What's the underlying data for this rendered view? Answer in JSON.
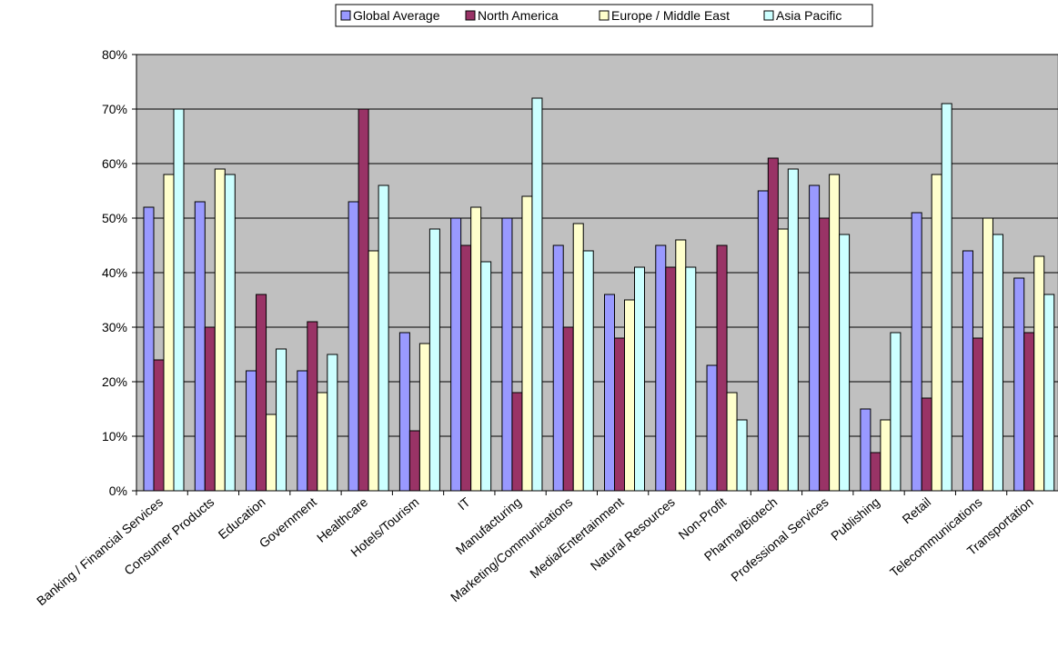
{
  "chart_data": {
    "type": "bar",
    "title": "",
    "xlabel": "",
    "ylabel": "",
    "ylim": [
      0,
      80
    ],
    "ytick_values": [
      0,
      10,
      20,
      30,
      40,
      50,
      60,
      70,
      80
    ],
    "ytick_labels": [
      "0%",
      "10%",
      "20%",
      "30%",
      "40%",
      "50%",
      "60%",
      "70%",
      "80%"
    ],
    "grid": true,
    "plot_background": "#c0c0c0",
    "legend_position": "top-center",
    "categories": [
      "Banking / Financial Services",
      "Consumer Products",
      "Education",
      "Government",
      "Healthcare",
      "Hotels/Tourism",
      "IT",
      "Manufacturing",
      "Marketing/Communications",
      "Media/Entertainment",
      "Natural Resources",
      "Non-Profit",
      "Pharma/Biotech",
      "Professional Services",
      "Publishing",
      "Retail",
      "Telecommunications",
      "Transportation"
    ],
    "series": [
      {
        "name": "Global Average",
        "color": "#9999ff",
        "values": [
          52,
          53,
          22,
          22,
          53,
          29,
          50,
          50,
          45,
          36,
          45,
          23,
          55,
          56,
          15,
          51,
          44,
          39
        ]
      },
      {
        "name": "North America",
        "color": "#993366",
        "values": [
          24,
          30,
          36,
          31,
          70,
          11,
          45,
          18,
          30,
          28,
          41,
          45,
          61,
          50,
          7,
          17,
          28,
          29
        ]
      },
      {
        "name": "Europe / Middle East",
        "color": "#ffffcc",
        "values": [
          58,
          59,
          14,
          18,
          44,
          27,
          52,
          54,
          49,
          35,
          46,
          18,
          48,
          58,
          13,
          58,
          50,
          43
        ]
      },
      {
        "name": "Asia Pacific",
        "color": "#ccffff",
        "values": [
          70,
          58,
          26,
          25,
          56,
          48,
          42,
          72,
          44,
          41,
          41,
          13,
          59,
          47,
          29,
          71,
          47,
          36
        ]
      }
    ]
  }
}
